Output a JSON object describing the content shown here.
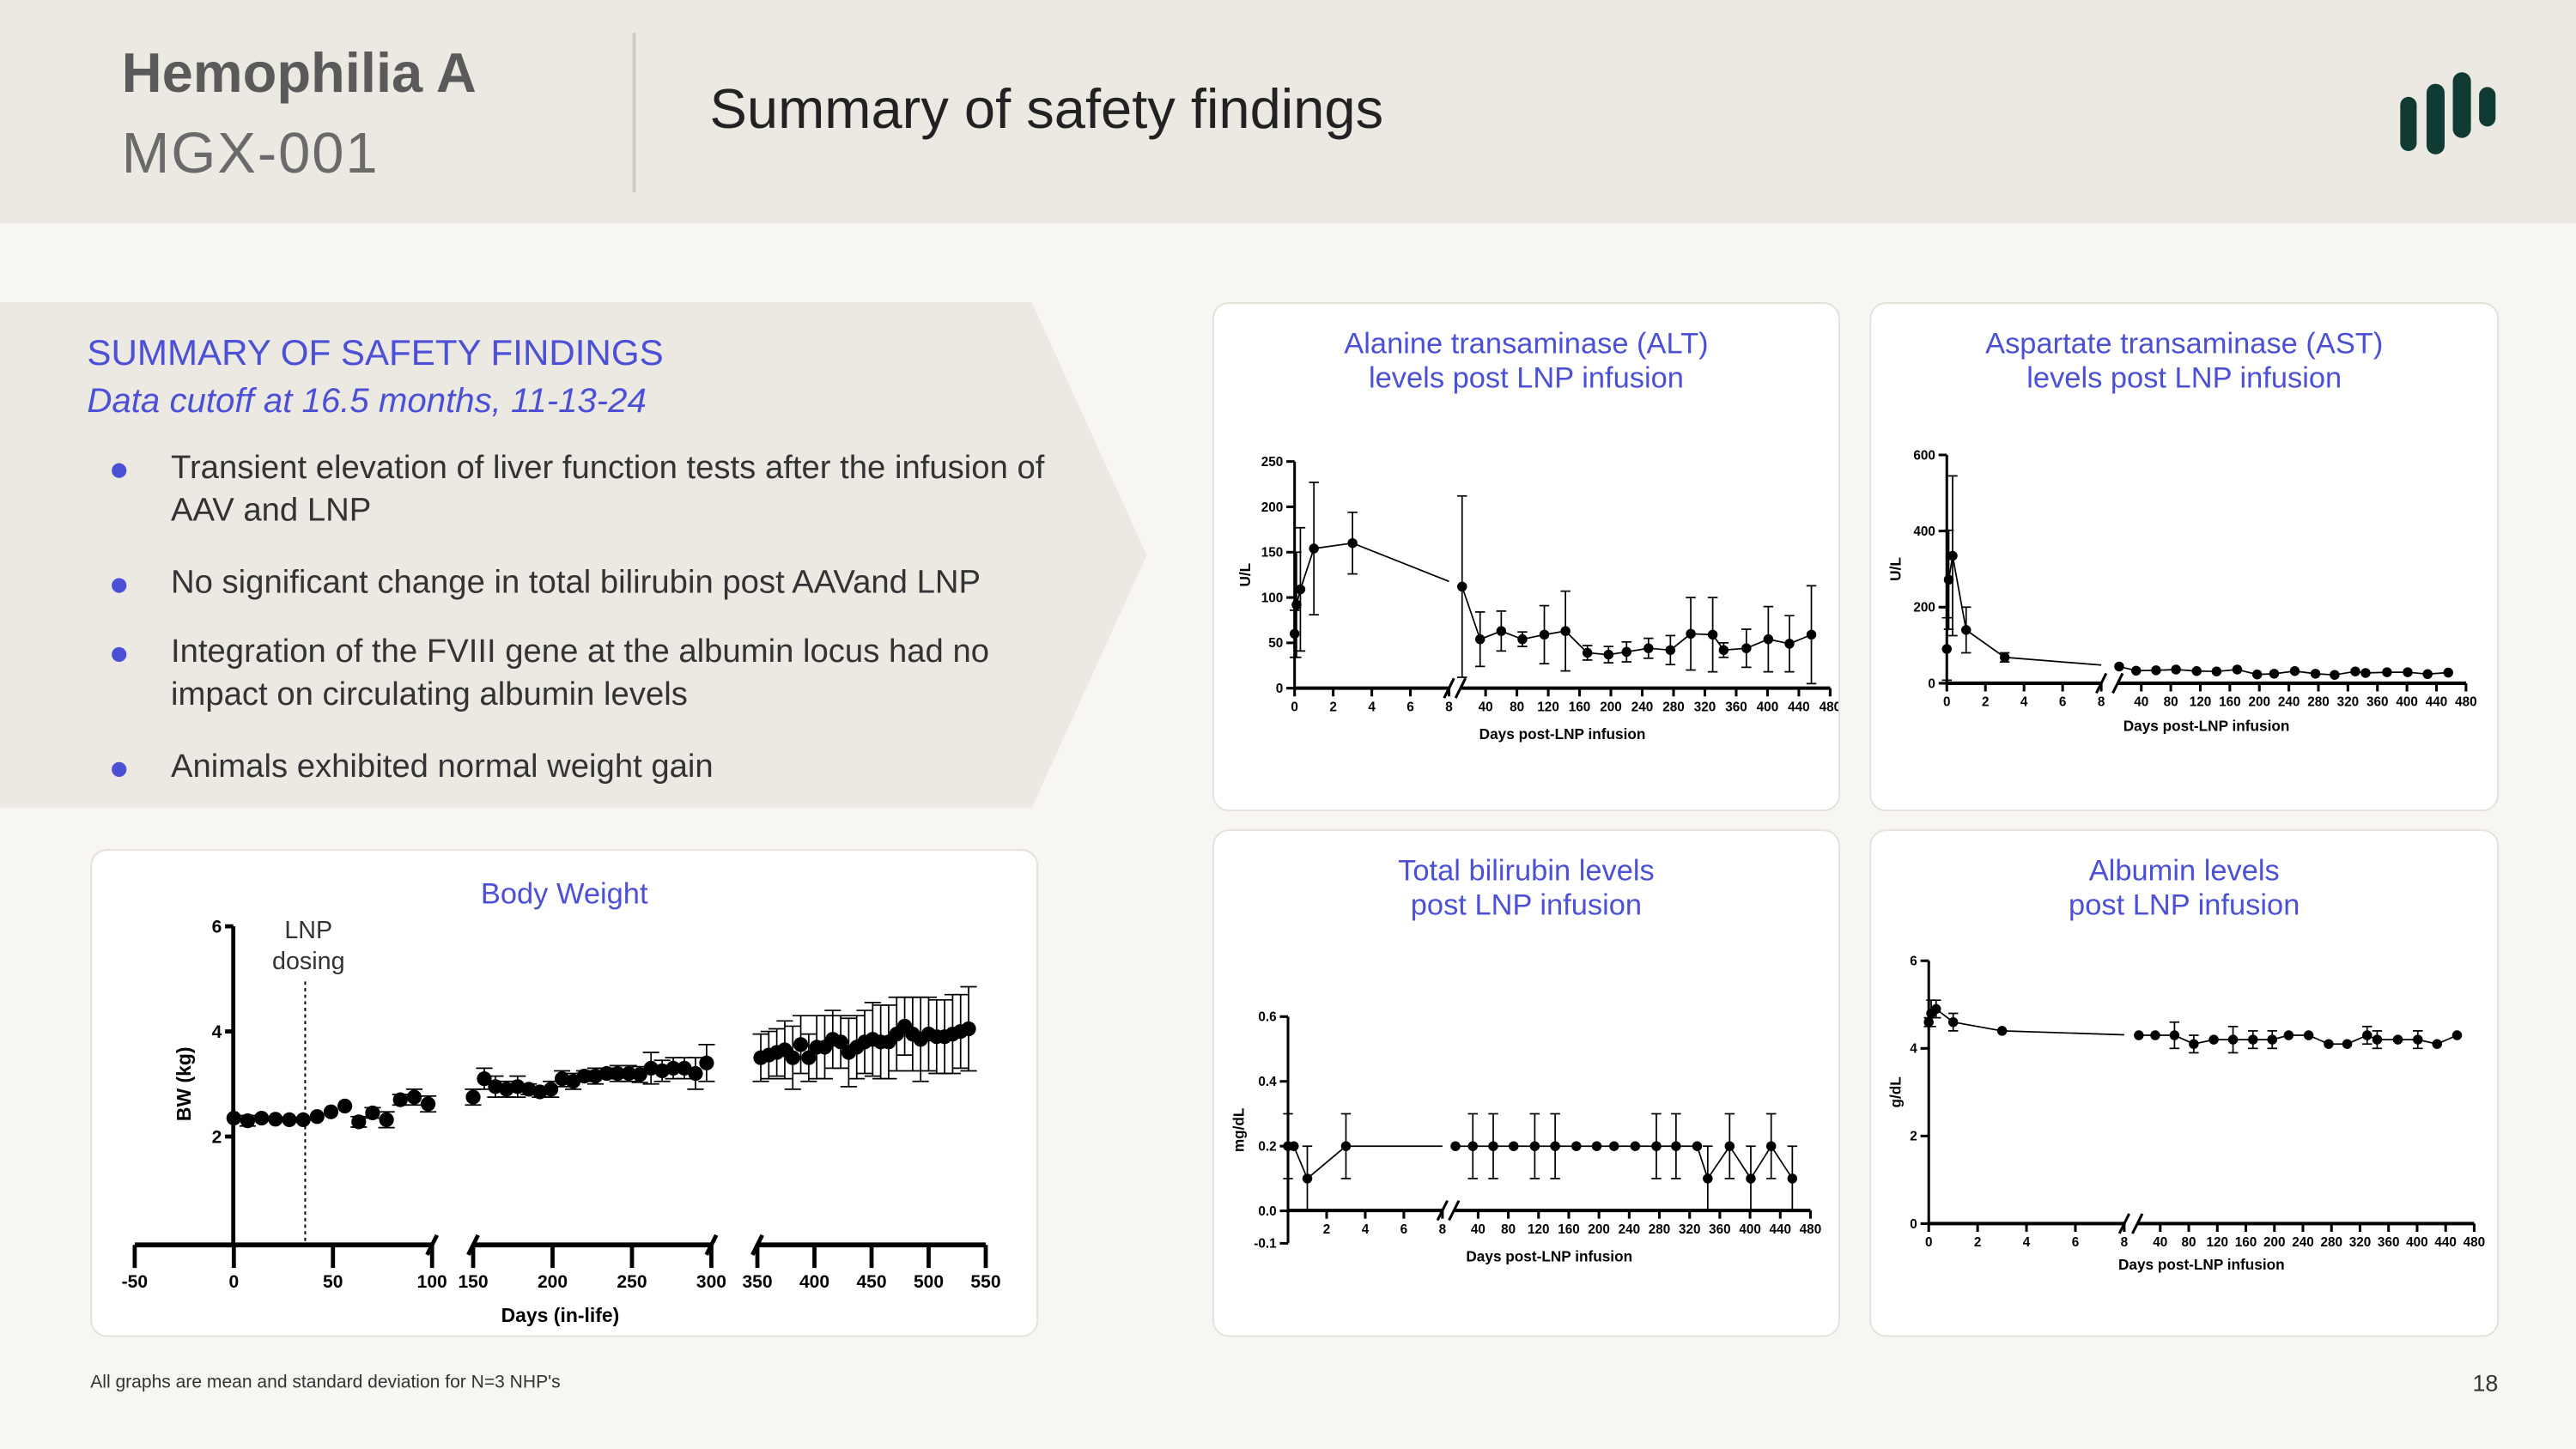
{
  "header": {
    "program": "Hemophilia A",
    "code": "MGX-001",
    "title": "Summary of safety findings",
    "logo_icon": "bars-logo-icon",
    "logo_color": "#0f3b34"
  },
  "summary": {
    "heading": "SUMMARY OF SAFETY FINDINGS",
    "subheading": "Data cutoff at 16.5 months, 11-13-24",
    "bullets": [
      "Transient elevation of liver function tests after the infusion of AAV and LNP",
      "No significant change in total bilirubin post AAVand LNP",
      "Integration of the FVIII gene at the albumin locus had no impact on circulating albumin levels",
      "Animals exhibited normal weight gain"
    ]
  },
  "colors": {
    "accent": "#4b50d6",
    "panel": "#ece8e2",
    "background": "#f8f6f3",
    "marks": "#000000"
  },
  "footnote": "All graphs are mean and standard deviation for N=3 NHP's",
  "page_number": "18",
  "chart_data": [
    {
      "id": "bw",
      "type": "scatter",
      "title": "Body Weight",
      "xlabel": "Days (in-life)",
      "ylabel": "BW (kg)",
      "annotation": [
        "LNP",
        "dosing"
      ],
      "annotation_x": 36,
      "ylim": [
        0,
        6
      ],
      "yticks": [
        2,
        4,
        6
      ],
      "x_segments": [
        {
          "domain": [
            -50,
            100
          ],
          "ticks": [
            -50,
            0,
            50,
            100
          ]
        },
        {
          "domain": [
            150,
            300
          ],
          "ticks": [
            150,
            200,
            250,
            300
          ]
        },
        {
          "domain": [
            350,
            550
          ],
          "ticks": [
            350,
            400,
            450,
            500,
            550
          ]
        }
      ],
      "lines": false,
      "points": [
        [
          0,
          2.35,
          0
        ],
        [
          7,
          2.3,
          0.1
        ],
        [
          14,
          2.35,
          0
        ],
        [
          21,
          2.33,
          0
        ],
        [
          28,
          2.32,
          0
        ],
        [
          35,
          2.32,
          0
        ],
        [
          42,
          2.38,
          0
        ],
        [
          49,
          2.47,
          0
        ],
        [
          56,
          2.58,
          0
        ],
        [
          63,
          2.28,
          0.1
        ],
        [
          70,
          2.45,
          0.1
        ],
        [
          77,
          2.32,
          0.15
        ],
        [
          84,
          2.7,
          0.1
        ],
        [
          91,
          2.75,
          0.15
        ],
        [
          98,
          2.62,
          0.15
        ],
        [
          150,
          2.75,
          0.15
        ],
        [
          157,
          3.1,
          0.2
        ],
        [
          164,
          2.95,
          0.2
        ],
        [
          171,
          2.9,
          0.15
        ],
        [
          178,
          2.95,
          0.2
        ],
        [
          185,
          2.9,
          0.1
        ],
        [
          192,
          2.85,
          0.1
        ],
        [
          199,
          2.9,
          0.15
        ],
        [
          206,
          3.1,
          0.15
        ],
        [
          213,
          3.05,
          0.15
        ],
        [
          220,
          3.15,
          0.1
        ],
        [
          227,
          3.15,
          0.15
        ],
        [
          234,
          3.2,
          0.1
        ],
        [
          241,
          3.2,
          0.15
        ],
        [
          248,
          3.2,
          0.15
        ],
        [
          255,
          3.18,
          0.15
        ],
        [
          262,
          3.3,
          0.3
        ],
        [
          269,
          3.25,
          0.2
        ],
        [
          276,
          3.3,
          0.2
        ],
        [
          283,
          3.3,
          0.2
        ],
        [
          290,
          3.2,
          0.3
        ],
        [
          297,
          3.4,
          0.35
        ],
        [
          353,
          3.5,
          0.45
        ],
        [
          360,
          3.55,
          0.45
        ],
        [
          367,
          3.6,
          0.45
        ],
        [
          374,
          3.65,
          0.55
        ],
        [
          381,
          3.5,
          0.6
        ],
        [
          388,
          3.75,
          0.55
        ],
        [
          395,
          3.5,
          0.45
        ],
        [
          402,
          3.7,
          0.6
        ],
        [
          409,
          3.7,
          0.6
        ],
        [
          416,
          3.85,
          0.55
        ],
        [
          423,
          3.8,
          0.5
        ],
        [
          430,
          3.6,
          0.65
        ],
        [
          437,
          3.7,
          0.6
        ],
        [
          444,
          3.8,
          0.6
        ],
        [
          451,
          3.85,
          0.7
        ],
        [
          458,
          3.8,
          0.7
        ],
        [
          465,
          3.8,
          0.7
        ],
        [
          472,
          3.95,
          0.7
        ],
        [
          479,
          4.1,
          0.55
        ],
        [
          486,
          3.95,
          0.7
        ],
        [
          493,
          3.85,
          0.8
        ],
        [
          500,
          3.95,
          0.7
        ],
        [
          507,
          3.9,
          0.7
        ],
        [
          514,
          3.9,
          0.7
        ],
        [
          521,
          3.95,
          0.75
        ],
        [
          528,
          4.0,
          0.7
        ],
        [
          535,
          4.05,
          0.8
        ]
      ]
    },
    {
      "id": "alt",
      "type": "line",
      "title": [
        "Alanine transaminase (ALT)",
        "levels post LNP infusion"
      ],
      "xlabel": "Days post-LNP infusion",
      "ylabel": "U/L",
      "ylim": [
        0,
        250
      ],
      "yticks": [
        0,
        50,
        100,
        150,
        200,
        250
      ],
      "x_segments": [
        {
          "domain": [
            0,
            8
          ],
          "ticks": [
            0,
            2,
            4,
            6,
            8
          ]
        },
        {
          "domain": [
            8,
            480
          ],
          "ticks": [
            40,
            80,
            120,
            160,
            200,
            240,
            280,
            320,
            360,
            400,
            440,
            480
          ]
        }
      ],
      "lines": true,
      "points": [
        [
          0,
          60,
          26
        ],
        [
          0.1,
          92,
          58
        ],
        [
          0.3,
          109,
          68
        ],
        [
          1,
          154,
          73
        ],
        [
          3,
          160,
          34
        ],
        [
          10,
          112,
          100
        ],
        [
          33,
          54,
          30
        ],
        [
          60,
          63,
          22
        ],
        [
          87,
          54,
          8
        ],
        [
          115,
          59,
          32
        ],
        [
          142,
          63,
          44
        ],
        [
          170,
          39,
          8
        ],
        [
          197,
          37,
          9
        ],
        [
          220,
          40,
          11
        ],
        [
          248,
          44,
          11
        ],
        [
          276,
          42,
          16
        ],
        [
          302,
          60,
          40
        ],
        [
          330,
          59,
          41
        ],
        [
          344,
          42,
          8
        ],
        [
          373,
          44,
          21
        ],
        [
          401,
          54,
          36
        ],
        [
          428,
          49,
          31
        ],
        [
          456,
          59,
          54
        ]
      ]
    },
    {
      "id": "ast",
      "type": "line",
      "title": [
        "Aspartate transaminase (AST)",
        "levels post LNP infusion"
      ],
      "xlabel": "Days post-LNP  infusion",
      "ylabel": "U/L",
      "ylim": [
        0,
        600
      ],
      "yticks": [
        0,
        200,
        400,
        600
      ],
      "x_segments": [
        {
          "domain": [
            0,
            8
          ],
          "ticks": [
            0,
            2,
            4,
            6,
            8
          ]
        },
        {
          "domain": [
            8,
            480
          ],
          "ticks": [
            40,
            80,
            120,
            160,
            200,
            240,
            280,
            320,
            360,
            400,
            440,
            480
          ]
        }
      ],
      "lines": true,
      "points": [
        [
          0,
          90,
          82
        ],
        [
          0.1,
          272,
          130
        ],
        [
          0.3,
          335,
          210
        ],
        [
          1,
          140,
          60
        ],
        [
          3,
          68,
          12
        ],
        [
          10,
          44,
          0
        ],
        [
          33,
          33,
          0
        ],
        [
          60,
          34,
          0
        ],
        [
          87,
          36,
          0
        ],
        [
          115,
          32,
          0
        ],
        [
          142,
          31,
          0
        ],
        [
          170,
          36,
          0
        ],
        [
          197,
          23,
          0
        ],
        [
          220,
          25,
          0
        ],
        [
          248,
          32,
          0
        ],
        [
          276,
          25,
          0
        ],
        [
          302,
          22,
          0
        ],
        [
          330,
          31,
          0
        ],
        [
          344,
          27,
          0
        ],
        [
          373,
          29,
          0
        ],
        [
          401,
          29,
          0
        ],
        [
          428,
          24,
          0
        ],
        [
          456,
          28,
          0
        ]
      ]
    },
    {
      "id": "bili",
      "type": "line",
      "title": [
        "Total bilirubin levels",
        "post LNP infusion"
      ],
      "xlabel": "Days post-LNP infusion",
      "ylabel": "mg/dL",
      "ylim": [
        -0.1,
        0.6
      ],
      "yticks": [
        -0.1,
        0.0,
        0.2,
        0.4,
        0.6
      ],
      "ytick_labels": [
        "-0.1",
        "0.0",
        "0.2",
        "0.4",
        "0.6"
      ],
      "x_segments": [
        {
          "domain": [
            0,
            8
          ],
          "ticks": [
            2,
            4,
            6,
            8
          ]
        },
        {
          "domain": [
            8,
            480
          ],
          "ticks": [
            40,
            80,
            120,
            160,
            200,
            240,
            280,
            320,
            360,
            400,
            440,
            480
          ]
        }
      ],
      "lines": true,
      "points": [
        [
          0,
          0.2,
          0.1
        ],
        [
          0.3,
          0.2,
          0
        ],
        [
          1,
          0.1,
          0.1
        ],
        [
          3,
          0.2,
          0.1
        ],
        [
          10,
          0.2,
          0
        ],
        [
          33,
          0.2,
          0.1
        ],
        [
          60,
          0.2,
          0.1
        ],
        [
          87,
          0.2,
          0
        ],
        [
          115,
          0.2,
          0.1
        ],
        [
          142,
          0.2,
          0.1
        ],
        [
          170,
          0.2,
          0
        ],
        [
          197,
          0.2,
          0
        ],
        [
          220,
          0.2,
          0
        ],
        [
          248,
          0.2,
          0
        ],
        [
          276,
          0.2,
          0.1
        ],
        [
          302,
          0.2,
          0.1
        ],
        [
          330,
          0.2,
          0
        ],
        [
          344,
          0.1,
          0.1
        ],
        [
          373,
          0.2,
          0.1
        ],
        [
          401,
          0.1,
          0.1
        ],
        [
          428,
          0.2,
          0.1
        ],
        [
          456,
          0.1,
          0.1
        ]
      ]
    },
    {
      "id": "alb",
      "type": "line",
      "title": [
        "Albumin levels",
        "post LNP infusion"
      ],
      "xlabel": "Days post-LNP infusion",
      "ylabel": "g/dL",
      "ylim": [
        0,
        6
      ],
      "yticks": [
        0,
        2,
        4,
        6
      ],
      "x_segments": [
        {
          "domain": [
            0,
            8
          ],
          "ticks": [
            0,
            2,
            4,
            6,
            8
          ]
        },
        {
          "domain": [
            8,
            480
          ],
          "ticks": [
            40,
            80,
            120,
            160,
            200,
            240,
            280,
            320,
            360,
            400,
            440,
            480
          ]
        }
      ],
      "lines": true,
      "points": [
        [
          0,
          4.6,
          0.1
        ],
        [
          0.1,
          4.8,
          0.3
        ],
        [
          0.3,
          4.9,
          0.2
        ],
        [
          1,
          4.6,
          0.2
        ],
        [
          3,
          4.4,
          0
        ],
        [
          10,
          4.3,
          0
        ],
        [
          33,
          4.3,
          0
        ],
        [
          60,
          4.3,
          0.3
        ],
        [
          87,
          4.1,
          0.2
        ],
        [
          115,
          4.2,
          0
        ],
        [
          142,
          4.2,
          0.3
        ],
        [
          170,
          4.2,
          0.2
        ],
        [
          197,
          4.2,
          0.2
        ],
        [
          220,
          4.3,
          0
        ],
        [
          248,
          4.3,
          0
        ],
        [
          276,
          4.1,
          0
        ],
        [
          302,
          4.1,
          0
        ],
        [
          330,
          4.3,
          0.2
        ],
        [
          344,
          4.2,
          0.2
        ],
        [
          373,
          4.2,
          0
        ],
        [
          401,
          4.2,
          0.2
        ],
        [
          428,
          4.1,
          0
        ],
        [
          456,
          4.3,
          0
        ]
      ]
    }
  ]
}
